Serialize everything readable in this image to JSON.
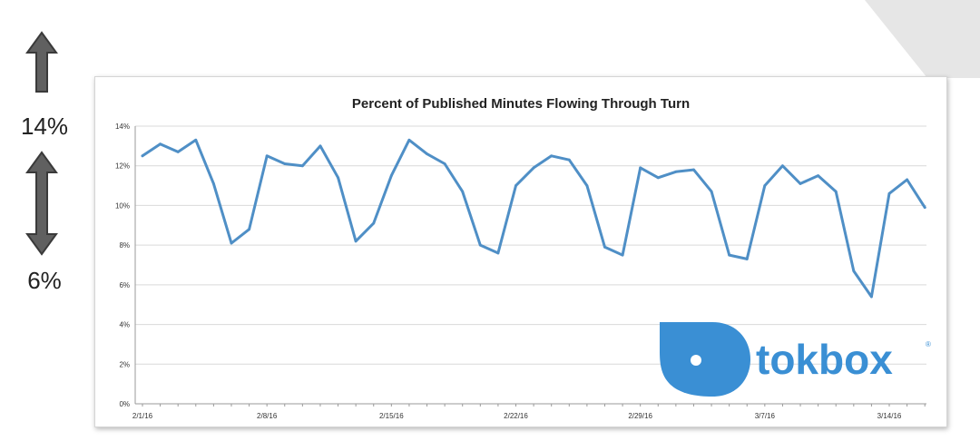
{
  "side_labels": {
    "upper": "14%",
    "lower": "6%"
  },
  "colors": {
    "line": "#4f8fc6",
    "logo": "#3a8fd4",
    "grid": "#d9d9d9",
    "arrow": "#606060",
    "arrow_dark": "#3a3a3a",
    "triangle": "#e6e6e6"
  },
  "icons": {
    "up_arrow": "up-arrow-icon",
    "double_arrow": "up-down-arrow-icon",
    "logo_mark": "tokbox-logo-icon"
  },
  "logo": {
    "text": "tokbox",
    "reg": "®"
  },
  "chart_data": {
    "type": "line",
    "title": "Percent of Published Minutes Flowing Through Turn",
    "xlabel": "",
    "ylabel": "",
    "ylim": [
      0,
      14
    ],
    "y_ticks": [
      "0%",
      "2%",
      "4%",
      "6%",
      "8%",
      "10%",
      "12%",
      "14%"
    ],
    "y_tick_values": [
      0,
      2,
      4,
      6,
      8,
      10,
      12,
      14
    ],
    "x_ticks": [
      "2/1/16",
      "2/8/16",
      "2/15/16",
      "2/22/16",
      "2/29/16",
      "3/7/16",
      "3/14/16"
    ],
    "x_tick_index": [
      0,
      7,
      14,
      21,
      28,
      35,
      42
    ],
    "grid": true,
    "legend": "none",
    "series": [
      {
        "values": [
          12.5,
          13.1,
          12.7,
          13.3,
          11.1,
          8.1,
          8.8,
          12.5,
          12.1,
          12.0,
          13.0,
          11.4,
          8.2,
          9.1,
          11.5,
          13.3,
          12.6,
          12.1,
          10.7,
          8.0,
          7.6,
          11.0,
          11.9,
          12.5,
          12.3,
          11.0,
          7.9,
          7.5,
          11.9,
          11.4,
          11.7,
          11.8,
          10.7,
          7.5,
          7.3,
          11.0,
          12.0,
          11.1,
          11.5,
          10.7,
          6.7,
          5.4,
          10.6,
          11.3,
          9.9
        ]
      }
    ]
  }
}
